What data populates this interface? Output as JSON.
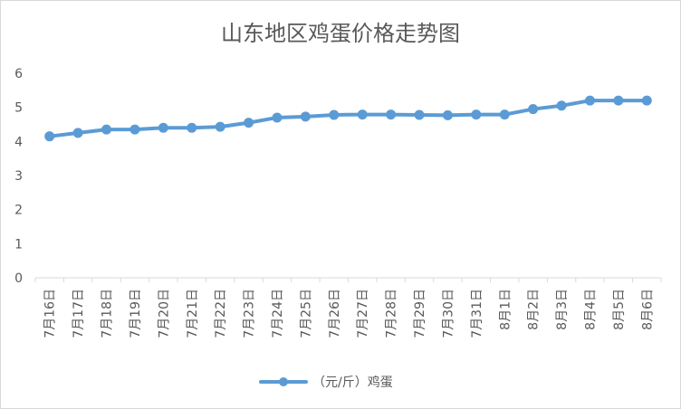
{
  "colors": {
    "series": "#5b9bd5",
    "axis_text": "#595959",
    "gridline": "#d9d9d9",
    "border": "#d9d9d9"
  },
  "chart_data": {
    "type": "line",
    "title": "山东地区鸡蛋价格走势图",
    "xlabel": "",
    "ylabel": "",
    "ylim": [
      0,
      6
    ],
    "yticks": [
      0,
      1,
      2,
      3,
      4,
      5,
      6
    ],
    "grid": false,
    "legend_position": "bottom",
    "categories": [
      "7月16日",
      "7月17日",
      "7月18日",
      "7月19日",
      "7月20日",
      "7月21日",
      "7月22日",
      "7月23日",
      "7月24日",
      "7月25日",
      "7月26日",
      "7月27日",
      "7月28日",
      "7月29日",
      "7月30日",
      "7月31日",
      "8月1日",
      "8月2日",
      "8月3日",
      "8月4日",
      "8月5日",
      "8月6日"
    ],
    "series": [
      {
        "name": "（元/斤）鸡蛋",
        "values": [
          4.15,
          4.25,
          4.35,
          4.35,
          4.4,
          4.4,
          4.43,
          4.55,
          4.7,
          4.73,
          4.78,
          4.79,
          4.79,
          4.78,
          4.77,
          4.79,
          4.79,
          4.95,
          5.05,
          5.2,
          5.2,
          5.2
        ]
      }
    ]
  }
}
